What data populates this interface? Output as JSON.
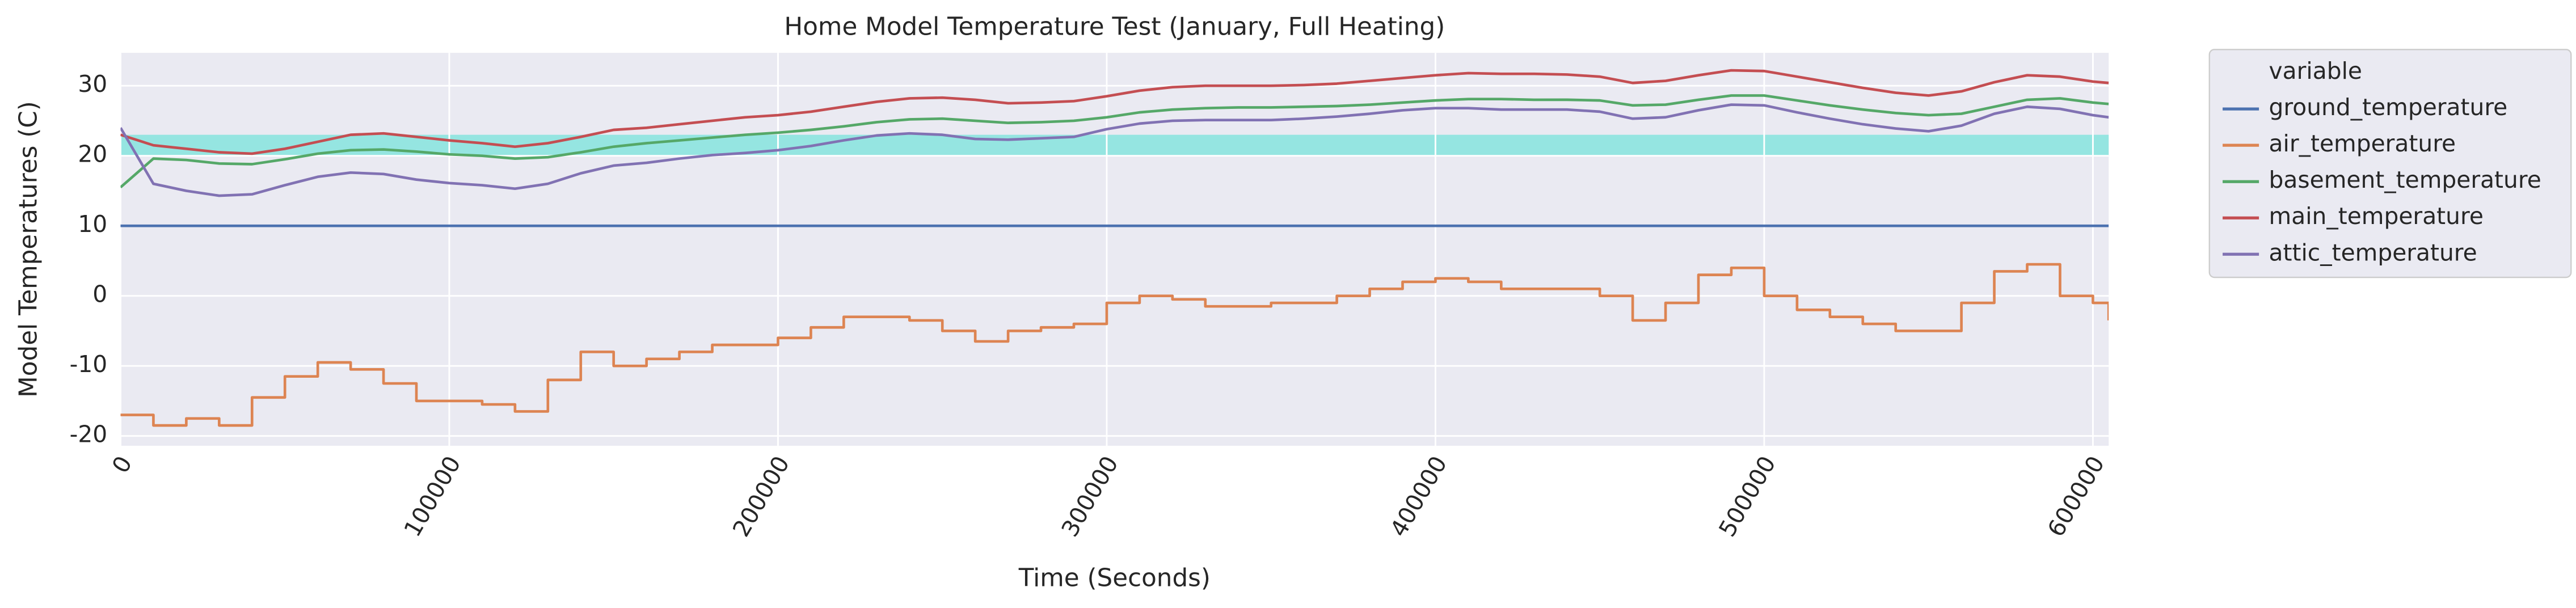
{
  "chart_data": {
    "type": "line",
    "title": "Home Model Temperature Test (January, Full Heating)",
    "x_label": "Time (Seconds)",
    "y_label": "Model Temperatures (C)",
    "legend_title": "variable",
    "legend_position": "outside right",
    "grid": true,
    "xlim": [
      0,
      604800
    ],
    "ylim": [
      -21.4,
      34.7
    ],
    "xticks": [
      0,
      100000,
      200000,
      300000,
      400000,
      500000,
      600000
    ],
    "yticks": [
      -20,
      -10,
      0,
      10,
      20,
      30
    ],
    "bands": [
      {
        "ymin": 20,
        "ymax": 23,
        "color": "#40e0d0"
      }
    ],
    "x": [
      0,
      10000,
      20000,
      30000,
      40000,
      50000,
      60000,
      70000,
      80000,
      90000,
      100000,
      110000,
      120000,
      130000,
      140000,
      150000,
      160000,
      170000,
      180000,
      190000,
      200000,
      210000,
      220000,
      230000,
      240000,
      250000,
      260000,
      270000,
      280000,
      290000,
      300000,
      310000,
      320000,
      330000,
      340000,
      350000,
      360000,
      370000,
      380000,
      390000,
      400000,
      410000,
      420000,
      430000,
      440000,
      450000,
      460000,
      470000,
      480000,
      490000,
      500000,
      510000,
      520000,
      530000,
      540000,
      550000,
      560000,
      570000,
      580000,
      590000,
      600000,
      604800
    ],
    "series": [
      {
        "name": "ground_temperature",
        "color": "#4c72b0",
        "step": false,
        "values": [
          10,
          10,
          10,
          10,
          10,
          10,
          10,
          10,
          10,
          10,
          10,
          10,
          10,
          10,
          10,
          10,
          10,
          10,
          10,
          10,
          10,
          10,
          10,
          10,
          10,
          10,
          10,
          10,
          10,
          10,
          10,
          10,
          10,
          10,
          10,
          10,
          10,
          10,
          10,
          10,
          10,
          10,
          10,
          10,
          10,
          10,
          10,
          10,
          10,
          10,
          10,
          10,
          10,
          10,
          10,
          10,
          10,
          10,
          10,
          10,
          10,
          10
        ]
      },
      {
        "name": "air_temperature",
        "color": "#dd8452",
        "step": true,
        "values": [
          -17,
          -18.5,
          -17.5,
          -18.5,
          -14.5,
          -11.5,
          -9.5,
          -10.5,
          -12.5,
          -15,
          -15,
          -15.5,
          -16.5,
          -12,
          -8,
          -10,
          -9,
          -8,
          -7,
          -7,
          -6,
          -4.5,
          -3,
          -3,
          -3.5,
          -5,
          -6.5,
          -5,
          -4.5,
          -4,
          -1,
          0,
          -0.5,
          -1.5,
          -1.5,
          -1,
          -1,
          0,
          1,
          2,
          2.5,
          2,
          1,
          1,
          1,
          0,
          -3.5,
          -1,
          3,
          4,
          0,
          -2,
          -3,
          -4,
          -5,
          -5,
          -1,
          3.5,
          4.5,
          0,
          -1,
          -3.5
        ]
      },
      {
        "name": "basement_temperature",
        "color": "#55a868",
        "step": false,
        "values": [
          15.5,
          19.6,
          19.4,
          18.9,
          18.8,
          19.5,
          20.3,
          20.8,
          20.9,
          20.6,
          20.2,
          20,
          19.6,
          19.8,
          20.5,
          21.3,
          21.8,
          22.2,
          22.6,
          23,
          23.3,
          23.7,
          24.2,
          24.8,
          25.2,
          25.3,
          25,
          24.7,
          24.8,
          25,
          25.5,
          26.2,
          26.6,
          26.8,
          26.9,
          26.9,
          27,
          27.1,
          27.3,
          27.6,
          27.9,
          28.1,
          28.1,
          28,
          28,
          27.9,
          27.2,
          27.3,
          28,
          28.6,
          28.6,
          27.9,
          27.2,
          26.6,
          26.1,
          25.8,
          26,
          27,
          28,
          28.2,
          27.6,
          27.4
        ]
      },
      {
        "name": "main_temperature",
        "color": "#c44e52",
        "step": false,
        "values": [
          23,
          21.5,
          21,
          20.5,
          20.3,
          21,
          22,
          23,
          23.2,
          22.7,
          22.2,
          21.8,
          21.3,
          21.8,
          22.7,
          23.7,
          24,
          24.5,
          25,
          25.5,
          25.8,
          26.3,
          27,
          27.7,
          28.2,
          28.3,
          28,
          27.5,
          27.6,
          27.8,
          28.5,
          29.3,
          29.8,
          30,
          30,
          30,
          30.1,
          30.3,
          30.7,
          31.1,
          31.5,
          31.8,
          31.7,
          31.7,
          31.6,
          31.3,
          30.4,
          30.7,
          31.5,
          32.2,
          32.1,
          31.3,
          30.5,
          29.7,
          29,
          28.6,
          29.2,
          30.5,
          31.5,
          31.3,
          30.6,
          30.4
        ]
      },
      {
        "name": "attic_temperature",
        "color": "#8172b3",
        "step": false,
        "values": [
          24,
          16,
          15,
          14.3,
          14.5,
          15.8,
          17,
          17.6,
          17.4,
          16.6,
          16.1,
          15.8,
          15.3,
          16,
          17.5,
          18.6,
          19,
          19.6,
          20.1,
          20.4,
          20.8,
          21.4,
          22.2,
          22.9,
          23.2,
          23,
          22.4,
          22.3,
          22.5,
          22.7,
          23.8,
          24.6,
          25,
          25.1,
          25.1,
          25.1,
          25.3,
          25.6,
          26,
          26.5,
          26.8,
          26.8,
          26.6,
          26.6,
          26.6,
          26.3,
          25.3,
          25.5,
          26.5,
          27.3,
          27.2,
          26.2,
          25.3,
          24.5,
          23.9,
          23.5,
          24.3,
          26,
          27,
          26.7,
          25.8,
          25.5
        ]
      }
    ]
  }
}
